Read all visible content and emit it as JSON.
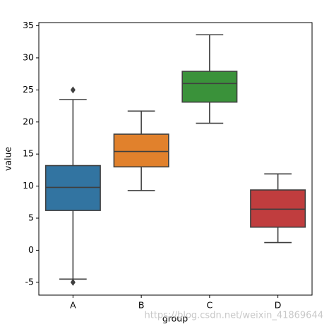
{
  "chart_data": {
    "type": "box",
    "xlabel": "group",
    "ylabel": "value",
    "categories": [
      "A",
      "B",
      "C",
      "D"
    ],
    "colors": [
      "#3274a1",
      "#e1812c",
      "#3a923a",
      "#c03d3e"
    ],
    "boxes": [
      {
        "whislo": -4.5,
        "q1": 6.2,
        "med": 9.8,
        "q3": 13.2,
        "whishi": 23.5,
        "fliers": [
          25,
          -5
        ]
      },
      {
        "whislo": 9.3,
        "q1": 13.0,
        "med": 15.4,
        "q3": 18.1,
        "whishi": 21.7,
        "fliers": []
      },
      {
        "whislo": 19.8,
        "q1": 23.1,
        "med": 26.0,
        "q3": 27.9,
        "whishi": 33.6,
        "fliers": []
      },
      {
        "whislo": 1.2,
        "q1": 3.6,
        "med": 6.4,
        "q3": 9.4,
        "whishi": 11.9,
        "fliers": []
      }
    ],
    "ylim": [
      -7,
      35.5
    ],
    "yticks": [
      -5,
      0,
      5,
      10,
      15,
      20,
      25,
      30,
      35
    ],
    "watermark": "https://blog.csdn.net/weixin_41869644"
  }
}
